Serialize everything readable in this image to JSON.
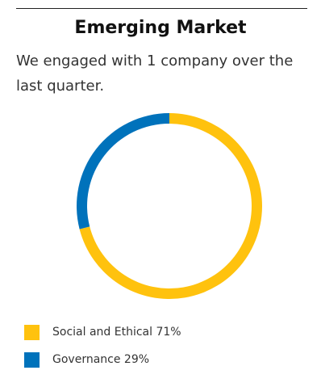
{
  "header": {
    "title": "Emerging Market",
    "subtitle": "We engaged with 1 company over the last quarter."
  },
  "chart_data": {
    "type": "pie",
    "title": "Emerging Market",
    "subtitle": "We engaged with 1 company over the last quarter.",
    "legend": "bottom-left",
    "slices": [
      {
        "name": "Social and Ethical",
        "value": 71,
        "unit": "%",
        "label": "Social and Ethical 71%",
        "color": "#FFC20E"
      },
      {
        "name": "Governance",
        "value": 29,
        "unit": "%",
        "label": "Governance 29%",
        "color": "#0072BB"
      }
    ]
  }
}
